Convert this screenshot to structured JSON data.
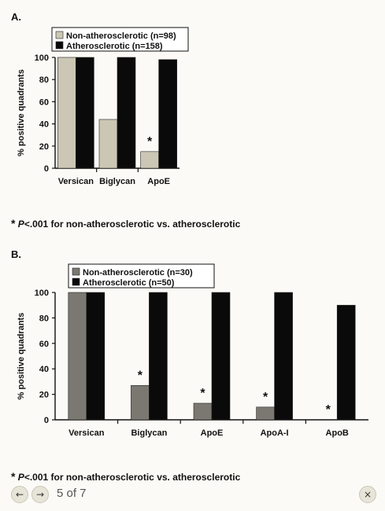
{
  "panel_a": {
    "label": "A.",
    "footnote_star": "*",
    "footnote_p": "P",
    "footnote_text": "<.001 for non-atherosclerotic vs. atherosclerotic"
  },
  "panel_b": {
    "label": "B.",
    "footnote_star": "*",
    "footnote_p": "P",
    "footnote_text": "<.001 for non-atherosclerotic vs. atherosclerotic"
  },
  "nav": {
    "prev_icon": "left-arrow-icon",
    "next_icon": "right-arrow-icon",
    "close_icon": "close-icon",
    "prev_glyph": "←",
    "next_glyph": "→",
    "close_glyph": "×",
    "pager": "5 of 7"
  },
  "chart_data": [
    {
      "type": "bar",
      "categories": [
        "Versican",
        "Biglycan",
        "ApoE"
      ],
      "series": [
        {
          "name": "Non-atherosclerotic (n=98)",
          "values": [
            100,
            44,
            15
          ],
          "color": "#cbc7b4"
        },
        {
          "name": "Atherosclerotic (n=158)",
          "values": [
            100,
            100,
            98
          ],
          "color": "#0a0a0a"
        }
      ],
      "significance": [
        false,
        false,
        true
      ],
      "significance_marker": "*",
      "ylabel": "% positive quadrants",
      "ylim": [
        0,
        100
      ],
      "yticks": [
        "0",
        "20",
        "40",
        "60",
        "80",
        "100"
      ],
      "grid": false,
      "legend": "top-left"
    },
    {
      "type": "bar",
      "categories": [
        "Versican",
        "Biglycan",
        "ApoE",
        "ApoA-I",
        "ApoB"
      ],
      "series": [
        {
          "name": "Non-atherosclerotic (n=30)",
          "values": [
            100,
            27,
            13,
            10,
            0
          ],
          "color": "#7a7870"
        },
        {
          "name": "Atherosclerotic (n=50)",
          "values": [
            100,
            100,
            100,
            100,
            90
          ],
          "color": "#0a0a0a"
        }
      ],
      "significance": [
        false,
        true,
        true,
        true,
        true
      ],
      "significance_marker": "*",
      "ylabel": "% positive quadrants",
      "ylim": [
        0,
        100
      ],
      "yticks": [
        "0",
        "20",
        "40",
        "60",
        "80",
        "100"
      ],
      "grid": false,
      "legend": "top-left"
    }
  ]
}
